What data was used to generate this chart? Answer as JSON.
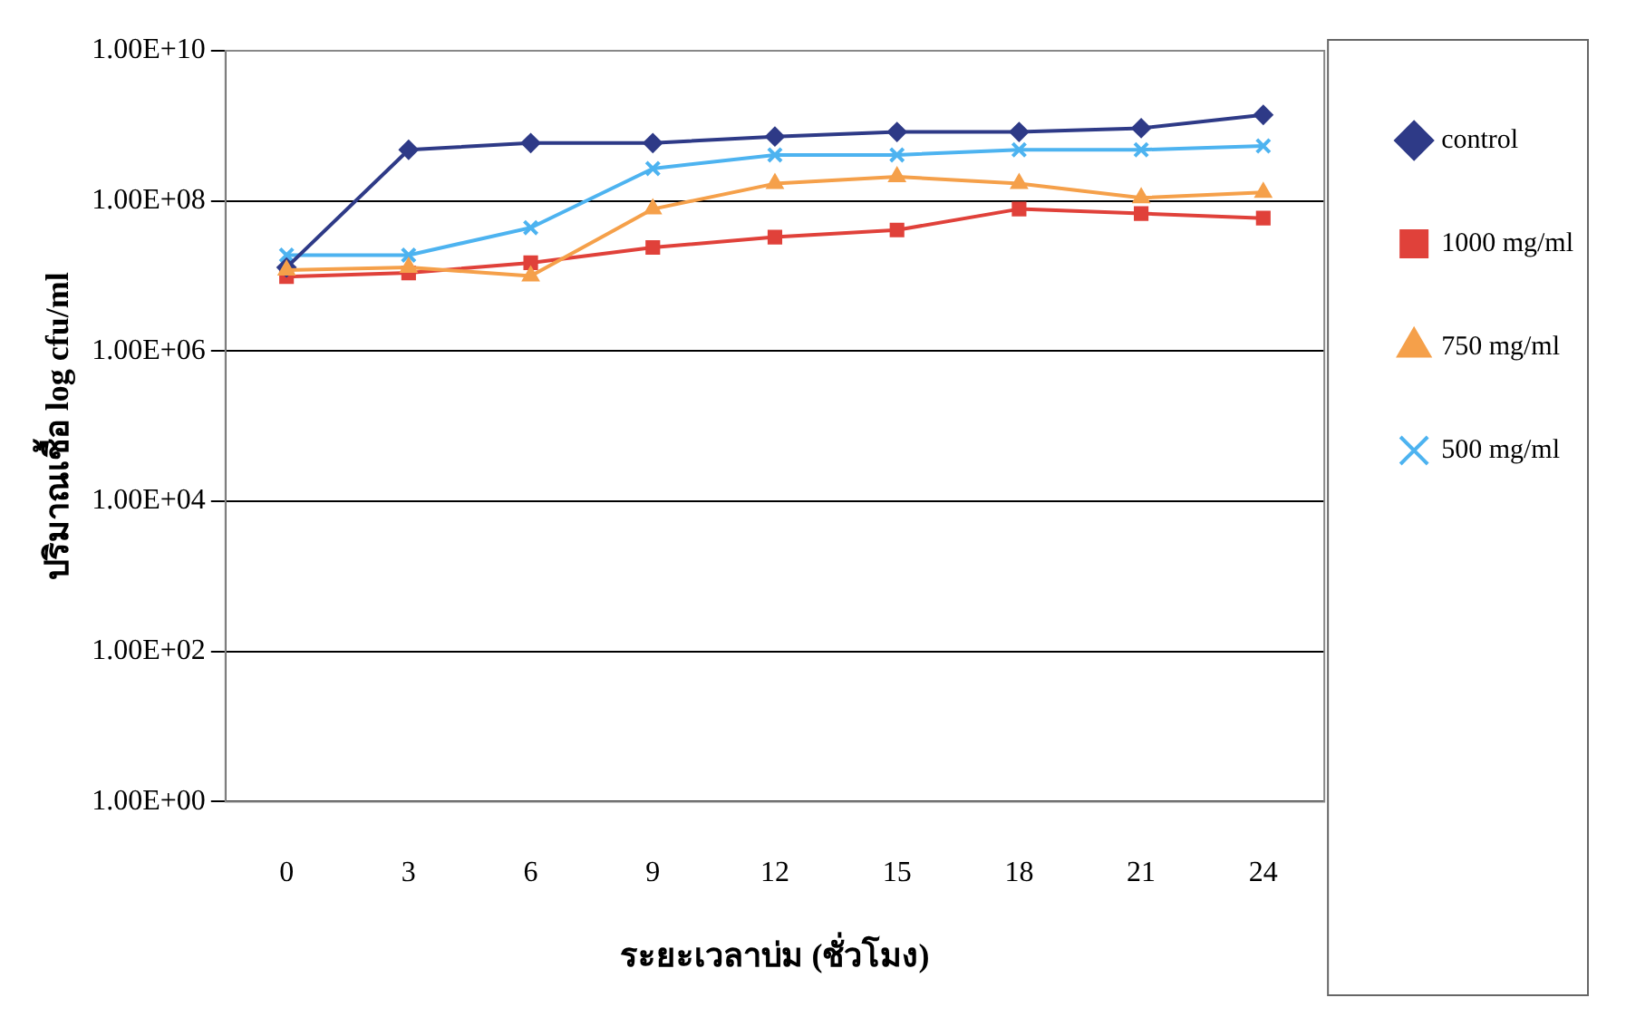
{
  "chart_data": {
    "type": "line",
    "xlabel": "ระยะเวลาบ่ม (ชั่วโมง)",
    "ylabel": "ปริมาณเชื้อ log cfu/ml",
    "categories": [
      "0",
      "3",
      "6",
      "9",
      "12",
      "15",
      "18",
      "21",
      "24"
    ],
    "log": "y",
    "ylim": [
      1,
      10000000000
    ],
    "yticks": [
      {
        "value": 1,
        "label": "1.00E+00"
      },
      {
        "value": 100,
        "label": "1.00E+02"
      },
      {
        "value": 10000,
        "label": "1.00E+04"
      },
      {
        "value": 1000000,
        "label": "1.00E+06"
      },
      {
        "value": 100000000,
        "label": "1.00E+08"
      },
      {
        "value": 10000000000,
        "label": "1.00E+10"
      }
    ],
    "grid": "y",
    "legend": "right",
    "series": [
      {
        "name": "control",
        "color": "#2e3a87",
        "marker": "diamond",
        "values": [
          13000000.0,
          480000000.0,
          590000000.0,
          590000000.0,
          720000000.0,
          830000000.0,
          830000000.0,
          930000000.0,
          1400000000.0
        ]
      },
      {
        "name": "1000 mg/ml",
        "color": "#e0413a",
        "marker": "square",
        "values": [
          9800000.0,
          11000000.0,
          15000000.0,
          24000000.0,
          33000000.0,
          41000000.0,
          78000000.0,
          68000000.0,
          59000000.0
        ]
      },
      {
        "name": "750 mg/ml",
        "color": "#f5a04a",
        "marker": "triangle",
        "values": [
          12000000.0,
          13000000.0,
          10000000.0,
          78000000.0,
          170000000.0,
          210000000.0,
          170000000.0,
          110000000.0,
          130000000.0
        ]
      },
      {
        "name": "500 mg/ml",
        "color": "#4db3f0",
        "marker": "cross",
        "values": [
          19000000.0,
          19000000.0,
          44000000.0,
          270000000.0,
          410000000.0,
          410000000.0,
          480000000.0,
          480000000.0,
          540000000.0
        ]
      }
    ]
  }
}
